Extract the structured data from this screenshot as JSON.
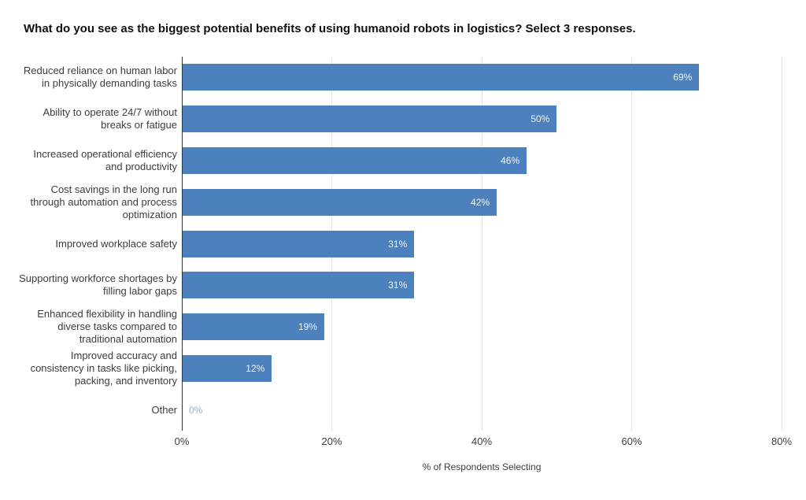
{
  "chart_data": {
    "type": "bar",
    "orientation": "horizontal",
    "title": "What do you see as the biggest potential benefits of using humanoid robots in logistics? Select 3 responses.",
    "categories": [
      "Reduced reliance on human labor in physically demanding tasks",
      "Ability to operate 24/7 without breaks or fatigue",
      "Increased operational efficiency and productivity",
      "Cost savings in the long run through automation and process optimization",
      "Improved workplace safety",
      "Supporting workforce shortages by filling labor gaps",
      "Enhanced flexibility in handling diverse tasks compared to traditional automation",
      "Improved accuracy and consistency in tasks like picking, packing, and inventory",
      "Other"
    ],
    "values": [
      69,
      50,
      46,
      42,
      31,
      31,
      19,
      12,
      0
    ],
    "value_labels": [
      "69%",
      "50%",
      "46%",
      "42%",
      "31%",
      "31%",
      "19%",
      "12%",
      "0%"
    ],
    "xlabel": "% of Respondents Selecting",
    "ylabel": "",
    "xlim": [
      0,
      80
    ],
    "tick_values": [
      0,
      20,
      40,
      60,
      80
    ],
    "x_ticks": [
      "0%",
      "20%",
      "40%",
      "60%",
      "80%"
    ],
    "grid": true,
    "legend": "none",
    "colors": {
      "bar": "#4d81bd",
      "bar_value_label": "rgba(255,255,255,0.92)",
      "zero_value_label": "#8fafdc",
      "axis_line": "#333333",
      "gridline": "#e2e2e2",
      "category_label": "#3c3c3c",
      "tick_label": "#3c3c3c",
      "axis_title": "#3c3c3c",
      "title": "#111111"
    }
  }
}
